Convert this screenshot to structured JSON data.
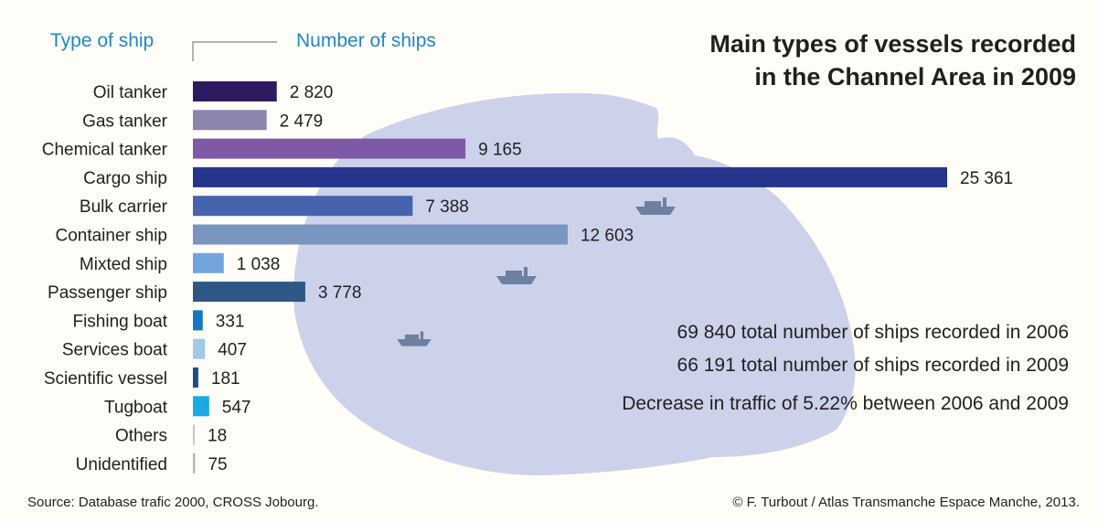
{
  "title_line1": "Main types of vessels recorded",
  "title_line2": "in the Channel Area in 2009",
  "header_type": "Type of ship",
  "header_number": "Number of ships",
  "stats": {
    "line1": "69 840 total number of ships recorded in 2006",
    "line2": "66 191 total number of ships recorded in 2009",
    "line3": "Decrease in traffic of 5.22% between 2006 and 2009"
  },
  "source": "Source: Database trafic 2000, CROSS Jobourg.",
  "credit": "© F. Turbout / Atlas Transmanche Espace Manche, 2013.",
  "colors": {
    "map_fill": "#ccd2ea",
    "ship_icon": "#6f7fa0",
    "axis_tick": "#9a9a9a",
    "text": "#231f20",
    "header": "#1e88c8"
  },
  "chart_data": {
    "type": "bar",
    "orientation": "horizontal",
    "grid": false,
    "categories": [
      "Oil tanker",
      "Gas tanker",
      "Chemical tanker",
      "Cargo ship",
      "Bulk carrier",
      "Container ship",
      "Mixted ship",
      "Passenger ship",
      "Fishing boat",
      "Services boat",
      "Scientific vessel",
      "Tugboat",
      "Others",
      "Unidentified"
    ],
    "values": [
      2820,
      2479,
      9165,
      25361,
      7388,
      12603,
      1038,
      3778,
      331,
      407,
      181,
      547,
      18,
      75
    ],
    "value_labels": [
      "2 820",
      "2 479",
      "9 165",
      "25 361",
      "7 388",
      "12 603",
      "1 038",
      "3 778",
      "331",
      "407",
      "181",
      "547",
      "18",
      "75"
    ],
    "bar_colors": [
      "#2e1a5e",
      "#8c85ad",
      "#7e5aa6",
      "#27348b",
      "#4863ad",
      "#7896c0",
      "#73a5dc",
      "#2d5786",
      "#1479c1",
      "#a4c8e8",
      "#1c4f8a",
      "#1ba9e1",
      "#c8c8c8",
      "#b5b5b5"
    ],
    "xlim": [
      0,
      25361
    ]
  }
}
